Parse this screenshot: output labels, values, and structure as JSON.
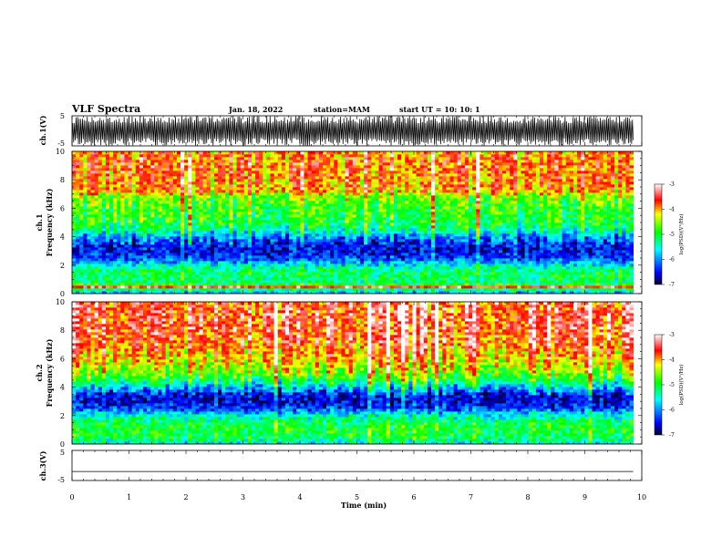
{
  "header": {
    "title": "VLF Spectra",
    "date": "Jan. 18, 2022",
    "station": "station=MAM",
    "start_ut": "start UT =  10: 10: 1"
  },
  "chart_data": [
    {
      "type": "line",
      "panel": "ch1-waveform",
      "ylabel": "ch.1(V)",
      "ylim": [
        -5,
        5
      ],
      "yticks": [
        5,
        -5
      ],
      "description_values": {
        "x_range_min": [
          0,
          9.85
        ],
        "amplitude_V": "saturated noise spanning about -5 to 5"
      }
    },
    {
      "type": "heatmap",
      "panel": "ch1-spectrogram",
      "ylabel": [
        "ch.1",
        "Frequency (kHz)"
      ],
      "ylim": [
        0,
        10
      ],
      "yticks": [
        0,
        2,
        4,
        6,
        8,
        10
      ],
      "x_range_min": [
        0,
        9.85
      ],
      "colorbar": {
        "label": "log(PSD)(V²/Hz)",
        "range": [
          -7,
          -3
        ],
        "ticks": [
          -3,
          -4,
          -5,
          -6,
          -7
        ],
        "colors": [
          "#000033",
          "#0000ff",
          "#00ffff",
          "#00ff00",
          "#ffff00",
          "#ff0000",
          "#ffffff"
        ]
      },
      "frequency_profile_logpsd": [
        {
          "f": 0.0,
          "v": -6.0
        },
        {
          "f": 0.3,
          "v": -5.2
        },
        {
          "f": 0.5,
          "v": -3.4
        },
        {
          "f": 0.7,
          "v": -5.3
        },
        {
          "f": 1.0,
          "v": -5.2
        },
        {
          "f": 1.5,
          "v": -5.1
        },
        {
          "f": 2.0,
          "v": -5.6
        },
        {
          "f": 2.5,
          "v": -6.3
        },
        {
          "f": 3.0,
          "v": -6.5
        },
        {
          "f": 3.5,
          "v": -6.4
        },
        {
          "f": 4.0,
          "v": -6.0
        },
        {
          "f": 4.5,
          "v": -5.3
        },
        {
          "f": 5.0,
          "v": -5.0
        },
        {
          "f": 6.0,
          "v": -4.9
        },
        {
          "f": 6.8,
          "v": -4.6
        },
        {
          "f": 7.2,
          "v": -4.0
        },
        {
          "f": 8.0,
          "v": -3.9
        },
        {
          "f": 9.0,
          "v": -3.8
        },
        {
          "f": 10.0,
          "v": -3.9
        }
      ]
    },
    {
      "type": "heatmap",
      "panel": "ch2-spectrogram",
      "ylabel": [
        "ch.2",
        "Frequency (kHz)"
      ],
      "ylim": [
        0,
        10
      ],
      "yticks": [
        0,
        2,
        4,
        6,
        8,
        10
      ],
      "x_range_min": [
        0,
        9.85
      ],
      "colorbar": {
        "label": "log(PSD)(V²/Hz)",
        "range": [
          -7,
          -3
        ],
        "ticks": [
          -3,
          -4,
          -5,
          -6,
          -7
        ],
        "colors": [
          "#000033",
          "#0000ff",
          "#00ffff",
          "#00ff00",
          "#ffff00",
          "#ff0000",
          "#ffffff"
        ]
      },
      "frequency_profile_logpsd": [
        {
          "f": 0.0,
          "v": -5.6
        },
        {
          "f": 0.5,
          "v": -5.1
        },
        {
          "f": 1.0,
          "v": -5.0
        },
        {
          "f": 1.5,
          "v": -5.1
        },
        {
          "f": 2.0,
          "v": -5.5
        },
        {
          "f": 2.5,
          "v": -6.3
        },
        {
          "f": 3.0,
          "v": -6.6
        },
        {
          "f": 3.5,
          "v": -6.5
        },
        {
          "f": 4.0,
          "v": -5.8
        },
        {
          "f": 4.5,
          "v": -5.1
        },
        {
          "f": 5.0,
          "v": -4.6
        },
        {
          "f": 6.0,
          "v": -4.1
        },
        {
          "f": 7.0,
          "v": -3.8
        },
        {
          "f": 8.0,
          "v": -3.6
        },
        {
          "f": 9.0,
          "v": -3.6
        },
        {
          "f": 10.0,
          "v": -3.7
        }
      ]
    },
    {
      "type": "line",
      "panel": "ch3-waveform",
      "ylabel": "ch.3(V)",
      "ylim": [
        -5,
        5
      ],
      "yticks": [
        5,
        -5
      ],
      "x": [
        0,
        9.85
      ],
      "y": [
        -2,
        -2
      ]
    }
  ],
  "xaxis": {
    "label": "Time (min)",
    "range": [
      0,
      10
    ],
    "ticks": [
      "0",
      "1",
      "2",
      "3",
      "4",
      "5",
      "6",
      "7",
      "8",
      "9",
      "10"
    ]
  }
}
